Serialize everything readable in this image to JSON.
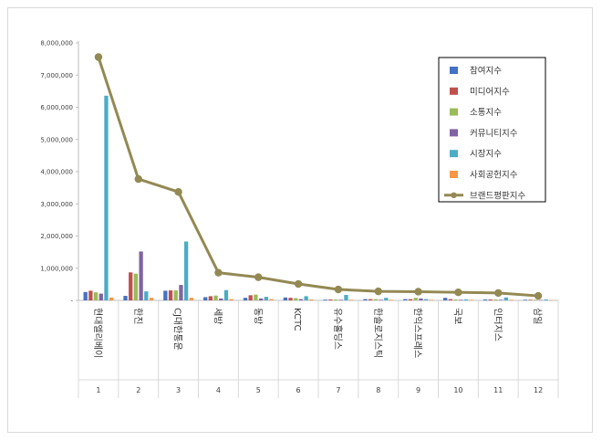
{
  "chart_data": {
    "type": "bar",
    "title": "",
    "xlabel": "",
    "ylabel": "",
    "ylim": [
      0,
      8000000
    ],
    "yticks": [
      "-",
      "1,000,000",
      "2,000,000",
      "3,000,000",
      "4,000,000",
      "5,000,000",
      "6,000,000",
      "7,000,000",
      "8,000,000"
    ],
    "ytick_values": [
      0,
      1000000,
      2000000,
      3000000,
      4000000,
      5000000,
      6000000,
      7000000,
      8000000
    ],
    "grid": false,
    "legend_position": "top-right",
    "categories": [
      "현대엘리베이",
      "한진",
      "CJ대한통운",
      "세방",
      "동방",
      "KCTC",
      "유수홀딩스",
      "한솔로지스틱",
      "한익스프레스",
      "국보",
      "인터지스",
      "삼일"
    ],
    "indices": [
      "1",
      "2",
      "3",
      "4",
      "5",
      "6",
      "7",
      "8",
      "9",
      "10",
      "11",
      "12"
    ],
    "series": [
      {
        "name": "참여지수",
        "color": "#4472c4",
        "kind": "bar",
        "values": [
          260000,
          140000,
          300000,
          100000,
          80000,
          90000,
          25000,
          40000,
          40000,
          80000,
          30000,
          20000
        ]
      },
      {
        "name": "미디어지수",
        "color": "#c0504d",
        "kind": "bar",
        "values": [
          300000,
          870000,
          310000,
          130000,
          160000,
          80000,
          30000,
          40000,
          40000,
          40000,
          30000,
          20000
        ]
      },
      {
        "name": "소통지수",
        "color": "#9bbb59",
        "kind": "bar",
        "values": [
          250000,
          830000,
          310000,
          150000,
          180000,
          70000,
          30000,
          40000,
          80000,
          30000,
          30000,
          20000
        ]
      },
      {
        "name": "커뮤니티지수",
        "color": "#8064a2",
        "kind": "bar",
        "values": [
          210000,
          1520000,
          480000,
          60000,
          60000,
          40000,
          20000,
          20000,
          60000,
          20000,
          20000,
          10000
        ]
      },
      {
        "name": "시장지수",
        "color": "#4bacc6",
        "kind": "bar",
        "values": [
          6360000,
          280000,
          1830000,
          320000,
          110000,
          130000,
          170000,
          80000,
          40000,
          30000,
          90000,
          30000
        ]
      },
      {
        "name": "사회공헌지수",
        "color": "#f79646",
        "kind": "bar",
        "values": [
          90000,
          80000,
          80000,
          40000,
          40000,
          30000,
          20000,
          20000,
          20000,
          20000,
          20000,
          10000
        ]
      },
      {
        "name": "브랜드평판지수",
        "color": "#938953",
        "kind": "line",
        "values": [
          7560000,
          3770000,
          3370000,
          860000,
          720000,
          510000,
          340000,
          280000,
          270000,
          250000,
          230000,
          140000
        ]
      }
    ]
  }
}
